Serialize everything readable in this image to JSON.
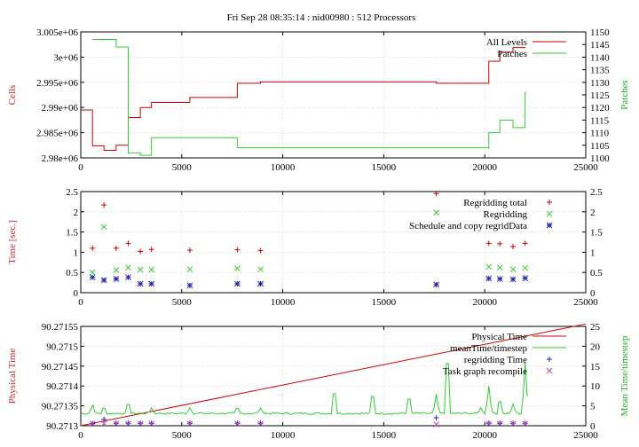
{
  "figure_title": "Fri Sep 28 08:35:14 : nid00980 : 512 Processors",
  "colors": {
    "red": "#cc0000",
    "green": "#33cc33",
    "blue": "#2222aa",
    "purple": "#bb44bb",
    "axis_red": "#cc2222",
    "axis_green": "#22aa22"
  },
  "chart_data": [
    {
      "type": "line",
      "grid": true,
      "legend_position": "top-right",
      "xlim": [
        0,
        25000
      ],
      "x_ticks": [
        0,
        5000,
        10000,
        15000,
        20000,
        25000
      ],
      "ylabel_left": "Cells",
      "ylim_left": [
        2980000,
        3005000
      ],
      "y_ticks_left": [
        "2.98e+06",
        "2.985e+06",
        "2.99e+06",
        "2.995e+06",
        "3e+06",
        "3.005e+06"
      ],
      "ylabel_right": "Patches",
      "ylim_right": [
        1100,
        1150
      ],
      "y_ticks_right": [
        "1100",
        "1105",
        "1110",
        "1115",
        "1120",
        "1125",
        "1130",
        "1135",
        "1140",
        "1145",
        "1150"
      ],
      "series": [
        {
          "name": "All Levels",
          "axis": "left",
          "step": true,
          "x": [
            0,
            580,
            1150,
            1750,
            2350,
            2950,
            3500,
            5400,
            7750,
            8900,
            17600,
            20200,
            20750,
            21400,
            22000
          ],
          "y": [
            2989500,
            2982400,
            2981500,
            2982500,
            2988000,
            2990000,
            2991000,
            2992000,
            2994800,
            2995100,
            2994800,
            2999200,
            3001000,
            3001900,
            3002000
          ]
        },
        {
          "name": "Patches",
          "axis": "right",
          "step": true,
          "x": [
            580,
            1150,
            1750,
            2350,
            2950,
            3500,
            5400,
            7750,
            17600,
            20200,
            20750,
            21400,
            22000,
            22050
          ],
          "y": [
            1147,
            1147,
            1144,
            1102,
            1101,
            1108,
            1108,
            1104,
            1104,
            1110,
            1115,
            1112,
            1126,
            1126
          ]
        }
      ]
    },
    {
      "type": "scatter",
      "grid": true,
      "legend_position": "top-right",
      "xlim": [
        0,
        25000
      ],
      "x_ticks": [
        0,
        5000,
        10000,
        15000,
        20000,
        25000
      ],
      "ylabel_left": "Time [sec.]",
      "ylim_left": [
        0,
        2.5
      ],
      "y_ticks_left": [
        "0",
        "0.5",
        "1",
        "1.5",
        "2",
        "2.5"
      ],
      "ylim_right": [
        0,
        2.5
      ],
      "y_ticks_right": [
        "0",
        "0.5",
        "1",
        "1.5",
        "2",
        "2.5"
      ],
      "x": [
        580,
        1150,
        1750,
        2350,
        2950,
        3500,
        5400,
        7750,
        8900,
        17600,
        20200,
        20750,
        21400,
        22000
      ],
      "series": [
        {
          "name": "Regridding total",
          "marker": "plus",
          "y": [
            1.1,
            2.17,
            1.1,
            1.22,
            1.02,
            1.07,
            1.05,
            1.06,
            1.04,
            2.45,
            1.22,
            1.21,
            1.14,
            1.22
          ]
        },
        {
          "name": "Regridding",
          "marker": "cross",
          "y": [
            0.5,
            1.63,
            0.56,
            0.62,
            0.57,
            0.57,
            0.58,
            0.6,
            0.58,
            1.98,
            0.64,
            0.62,
            0.58,
            0.61
          ]
        },
        {
          "name": "Schedule and copy regridData",
          "marker": "star",
          "y": [
            0.38,
            0.31,
            0.34,
            0.38,
            0.22,
            0.22,
            0.18,
            0.22,
            0.22,
            0.2,
            0.35,
            0.34,
            0.33,
            0.36
          ]
        }
      ]
    },
    {
      "type": "line",
      "grid": true,
      "legend_position": "top-right",
      "xlim": [
        0,
        25000
      ],
      "x_ticks": [
        0,
        5000,
        10000,
        15000,
        20000,
        25000
      ],
      "ylabel_left": "Physical Time",
      "ylim_left": [
        90.2713,
        90.27155
      ],
      "y_ticks_left": [
        "90.2713",
        "90.27135",
        "90.2714",
        "90.27145",
        "90.2715",
        "90.27155"
      ],
      "ylabel_right": "Mean Time/timestep",
      "ylim_right": [
        0,
        25
      ],
      "y_ticks_right": [
        "0",
        "5",
        "10",
        "15",
        "20",
        "25"
      ],
      "series": [
        {
          "name": "Physical Time",
          "axis": "left",
          "x": [
            0,
            25000
          ],
          "y": [
            90.2713,
            90.271556
          ]
        },
        {
          "name": "meanTime/timestep",
          "axis": "right",
          "baseline": 3.1,
          "x_end": 22100,
          "spikes": [
            [
              580,
              5.5
            ],
            [
              1150,
              5.0
            ],
            [
              2350,
              6.5
            ],
            [
              3500,
              4.5
            ],
            [
              5400,
              4.5
            ],
            [
              7750,
              5.0
            ],
            [
              8900,
              4.5
            ],
            [
              12550,
              10.5
            ],
            [
              14450,
              9.5
            ],
            [
              16250,
              8.5
            ],
            [
              17600,
              8.0
            ],
            [
              18150,
              22.0
            ],
            [
              19800,
              4.5
            ],
            [
              20200,
              10.0
            ],
            [
              20750,
              7.5
            ],
            [
              21400,
              5.5
            ],
            [
              22000,
              16.0
            ]
          ]
        },
        {
          "name": "regridding Time",
          "axis": "right",
          "marker": "plus",
          "x": [
            580,
            1150,
            1750,
            2350,
            2950,
            3500,
            5400,
            7750,
            8900,
            17600,
            20200,
            20750,
            21400,
            22000
          ],
          "y": [
            0.5,
            1.6,
            0.6,
            0.6,
            0.6,
            0.6,
            0.6,
            0.6,
            0.6,
            2.0,
            0.6,
            0.6,
            0.6,
            0.6
          ]
        },
        {
          "name": "Task graph recompile",
          "axis": "right",
          "marker": "cross",
          "x": [
            580,
            1150,
            1750,
            2350,
            2950,
            3500,
            5400,
            7750,
            8900,
            17600,
            20200,
            20750,
            21400,
            22000
          ],
          "y": [
            0.5,
            0.5,
            0.5,
            0.5,
            0.5,
            0.5,
            0.5,
            0.5,
            0.5,
            0.3,
            0.5,
            0.5,
            0.5,
            0.5
          ]
        }
      ]
    }
  ]
}
